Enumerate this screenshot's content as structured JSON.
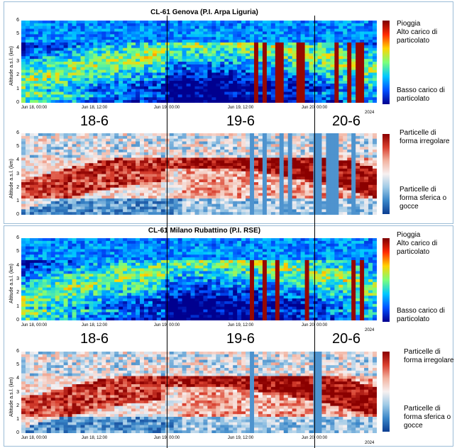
{
  "chart_data": [
    {
      "type": "heatmap",
      "station": "Genova",
      "title": "CL-61 Genova (P.I. Arpa Liguria)",
      "variable": "backscatter",
      "ylabel": "Altitude a.s.l. (km)",
      "ylim": [
        0,
        6
      ],
      "yticks": [
        "0",
        "1",
        "2",
        "3",
        "4",
        "5",
        "6"
      ],
      "xticks": [
        "Jun 18, 00:00",
        "Jun 18, 12:00",
        "Jun 19, 00:00",
        "Jun 19, 12:00",
        "Jun 20, 00:00"
      ],
      "year": "2024",
      "colorbar": {
        "top": "Pioggia\nAlto carico di\nparticolato",
        "bottom": "Basso carico di\nparticolato",
        "colors": [
          "#7f0000",
          "#ff2a00",
          "#ffd400",
          "#7cff7a",
          "#00c8ff",
          "#0050ff",
          "#00008f"
        ]
      }
    },
    {
      "type": "heatmap",
      "station": "Genova",
      "variable": "depolarization",
      "ylabel": "Altitude a.s.l. (km)",
      "ylim": [
        0,
        6
      ],
      "yticks": [
        "0",
        "1",
        "2",
        "3",
        "4",
        "5",
        "6"
      ],
      "xticks": [],
      "colorbar": {
        "top": "Particelle di\nforma irregolare",
        "bottom": "Particelle di\nforma sferica o\ngocce",
        "colors": [
          "#8b0000",
          "#d9402f",
          "#f2b3a0",
          "#f7f0f0",
          "#9ec9e6",
          "#3a86c8",
          "#0b3d91"
        ]
      }
    },
    {
      "type": "heatmap",
      "station": "Milano",
      "title": "CL-61 Milano Rubattino (P.I. RSE)",
      "variable": "backscatter",
      "ylabel": "Altitude a.s.l. (km)",
      "ylim": [
        0,
        6
      ],
      "yticks": [
        "0",
        "1",
        "2",
        "3",
        "4",
        "5",
        "6"
      ],
      "xticks": [
        "Jun 18, 00:00",
        "Jun 18, 12:00",
        "Jun 19, 00:00",
        "Jun 19, 12:00",
        "Jun 20, 00:00"
      ],
      "year": "2024",
      "colorbar": {
        "top": "Pioggia\nAlto carico di\nparticolato",
        "bottom": "Basso carico di\nparticolato",
        "colors": [
          "#7f0000",
          "#ff2a00",
          "#ffd400",
          "#7cff7a",
          "#00c8ff",
          "#0050ff",
          "#00008f"
        ]
      }
    },
    {
      "type": "heatmap",
      "station": "Milano",
      "variable": "depolarization",
      "ylabel": "Altitude a.s.l. (km)",
      "ylim": [
        0,
        6
      ],
      "yticks": [
        "0",
        "1",
        "2",
        "3",
        "4",
        "5",
        "6"
      ],
      "xticks": [
        "Jun 18, 00:00",
        "Jun 18, 12:00",
        "Jun 19, 00:00",
        "Jun 19, 12:00",
        "Jun 20, 00:00"
      ],
      "year": "2024",
      "colorbar": {
        "top": "Particelle di\nforma irregolare",
        "bottom": "Particelle di\nforma sferica o\ngocce",
        "colors": [
          "#8b0000",
          "#d9402f",
          "#f2b3a0",
          "#f7f0f0",
          "#9ec9e6",
          "#3a86c8",
          "#0b3d91"
        ]
      }
    }
  ],
  "day_labels": [
    "18-6",
    "19-6",
    "20-6"
  ]
}
